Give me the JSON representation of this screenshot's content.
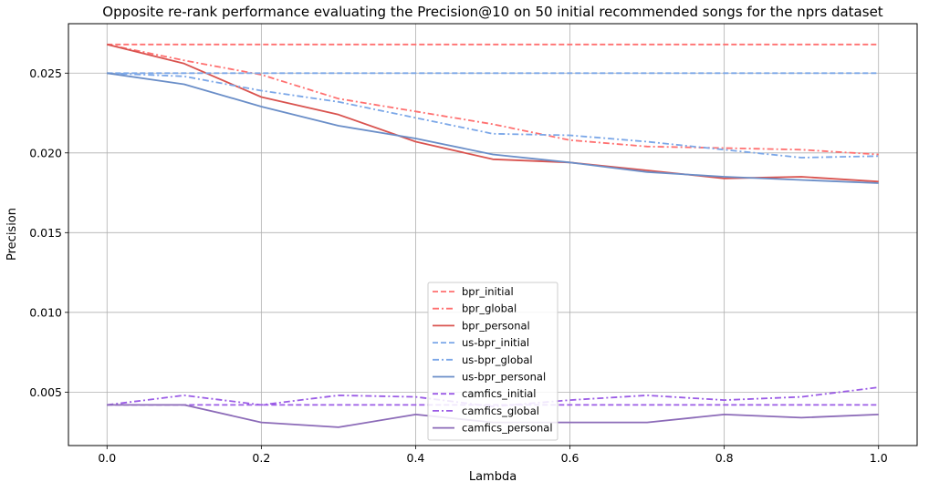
{
  "chart_data": {
    "type": "line",
    "title": "Opposite re-rank performance evaluating the Precision@10 on 50 initial recommended songs for the nprs dataset",
    "xlabel": "Lambda",
    "ylabel": "Precision",
    "xlim": [
      -0.05,
      1.05
    ],
    "ylim": [
      0.00165,
      0.0281
    ],
    "xticks": [
      0.0,
      0.2,
      0.4,
      0.6,
      0.8,
      1.0
    ],
    "xtick_labels": [
      "0.0",
      "0.2",
      "0.4",
      "0.6",
      "0.8",
      "1.0"
    ],
    "yticks": [
      0.005,
      0.01,
      0.015,
      0.02,
      0.025
    ],
    "ytick_labels": [
      "0.005",
      "0.010",
      "0.015",
      "0.020",
      "0.025"
    ],
    "grid": true,
    "legend_position": "lower-center",
    "x": [
      0.0,
      0.1,
      0.2,
      0.3,
      0.4,
      0.5,
      0.6,
      0.7,
      0.8,
      0.9,
      1.0
    ],
    "series": [
      {
        "name": "bpr_initial",
        "color": "#ff7070",
        "dash": "dashed",
        "values": [
          0.0268,
          0.0268,
          0.0268,
          0.0268,
          0.0268,
          0.0268,
          0.0268,
          0.0268,
          0.0268,
          0.0268,
          0.0268
        ]
      },
      {
        "name": "bpr_global",
        "color": "#ff7070",
        "dash": "dashdot",
        "values": [
          0.0268,
          0.0258,
          0.0249,
          0.0234,
          0.0226,
          0.0218,
          0.0208,
          0.0204,
          0.0203,
          0.0202,
          0.0199
        ]
      },
      {
        "name": "bpr_personal",
        "color": "#d9534f",
        "dash": "solid",
        "values": [
          0.0268,
          0.0256,
          0.0235,
          0.0224,
          0.0207,
          0.0196,
          0.0194,
          0.0189,
          0.0184,
          0.0185,
          0.0182
        ]
      },
      {
        "name": "us-bpr_initial",
        "color": "#7ba7e8",
        "dash": "dashed",
        "values": [
          0.025,
          0.025,
          0.025,
          0.025,
          0.025,
          0.025,
          0.025,
          0.025,
          0.025,
          0.025,
          0.025
        ]
      },
      {
        "name": "us-bpr_global",
        "color": "#7ba7e8",
        "dash": "dashdot",
        "values": [
          0.025,
          0.0248,
          0.0239,
          0.0232,
          0.0222,
          0.0212,
          0.0211,
          0.0207,
          0.0202,
          0.0197,
          0.0198
        ]
      },
      {
        "name": "us-bpr_personal",
        "color": "#6a8ec8",
        "dash": "solid",
        "values": [
          0.025,
          0.0243,
          0.0229,
          0.0217,
          0.0209,
          0.0199,
          0.0194,
          0.0188,
          0.0185,
          0.0183,
          0.0181
        ]
      },
      {
        "name": "camfics_initial",
        "color": "#9b5ce6",
        "dash": "dashed",
        "values": [
          0.0042,
          0.0042,
          0.0042,
          0.0042,
          0.0042,
          0.0042,
          0.0042,
          0.0042,
          0.0042,
          0.0042,
          0.0042
        ]
      },
      {
        "name": "camfics_global",
        "color": "#9b5ce6",
        "dash": "dashdot",
        "values": [
          0.0042,
          0.0048,
          0.0042,
          0.0048,
          0.0047,
          0.0041,
          0.0045,
          0.0048,
          0.0045,
          0.0047,
          0.0053
        ]
      },
      {
        "name": "camfics_personal",
        "color": "#8c6bb8",
        "dash": "solid",
        "values": [
          0.0042,
          0.0042,
          0.0031,
          0.0028,
          0.0036,
          0.0031,
          0.0031,
          0.0031,
          0.0036,
          0.0034,
          0.0036
        ]
      }
    ]
  }
}
